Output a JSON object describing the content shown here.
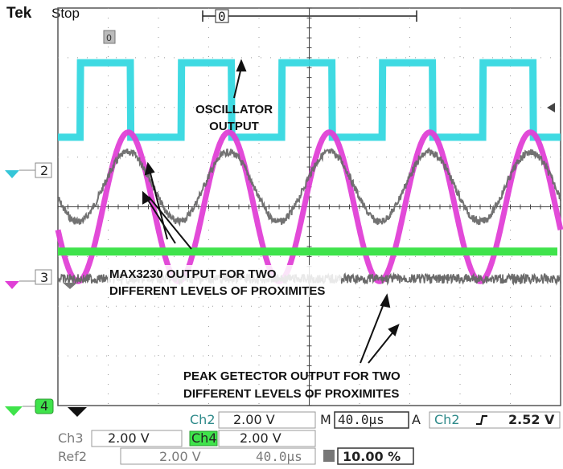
{
  "header": {
    "brand": "Tek",
    "status": "Stop",
    "trigger_marker": "0"
  },
  "colors": {
    "ch1": "#35d8e0",
    "ch2": "#e040d6",
    "ch3": "#3fe34b",
    "ref": "#6a6a6a",
    "grid": "#9a9a9a"
  },
  "channel_markers": [
    "2",
    "3",
    "4"
  ],
  "annotations": {
    "oscillator": [
      "OSCILLATOR",
      "OUTPUT"
    ],
    "max3230": [
      "MAX3230 OUTPUT FOR TWO",
      "DIFFERENT LEVELS OF PROXIMITES"
    ],
    "peak": [
      "PEAK GETECTOR OUTPUT FOR TWO",
      "DIFFERENT LEVELS OF PROXIMITES"
    ]
  },
  "readouts": {
    "ch2_label": "Ch2",
    "ch2_scale": "2.00 V",
    "timebase_label": "M",
    "timebase": "40.0µs",
    "trigger_mode": "A",
    "trigger_src": "Ch2",
    "trigger_level": "2.52 V",
    "ch3_label": "Ch3",
    "ch3_scale": "2.00 V",
    "ch4_label": "Ch4",
    "ch4_scale": "2.00 V",
    "ref2_label": "Ref2",
    "ref2_scale": "2.00 V",
    "ref2_time": "40.0µs",
    "duty": "10.00 %"
  },
  "chart_data": {
    "type": "line",
    "title": "",
    "xlabel": "",
    "ylabel": "",
    "x_divisions": 10,
    "y_divisions": 8,
    "grid": true,
    "series": [
      {
        "key": "oscillator",
        "color": "#35d8e0",
        "kind": "square",
        "period_div": 2.0,
        "phase_div": 0.45,
        "duty": 0.5,
        "high_div": 1.1,
        "low_div": 2.6
      },
      {
        "key": "max3230_high",
        "color": "#e040d6",
        "kind": "sine",
        "period_div": 2.0,
        "crest_div": 1.4,
        "center_div": 4.0,
        "amplitude_div": 1.5
      },
      {
        "key": "max3230_low",
        "color": "#6a6a6a",
        "kind": "sine",
        "period_div": 2.0,
        "crest_div": 1.4,
        "center_div": 3.6,
        "amplitude_div": 0.7
      },
      {
        "key": "peak_high",
        "color": "#3fe34b",
        "kind": "flat",
        "level_div": 4.9
      },
      {
        "key": "peak_low",
        "color": "#6a6a6a",
        "kind": "flat",
        "level_div": 5.45
      }
    ]
  }
}
